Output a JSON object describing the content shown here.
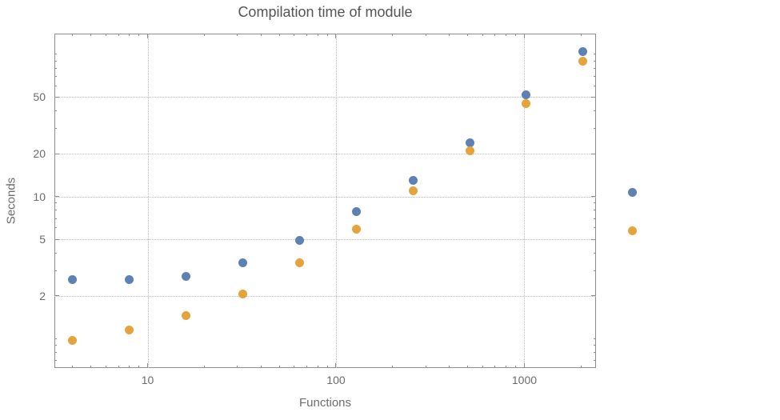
{
  "chart_data": {
    "type": "scatter",
    "title": "Compilation time of module",
    "xlabel": "Functions",
    "ylabel": "Seconds",
    "xscale": "log",
    "yscale": "log",
    "xlim": [
      3.2,
      2400
    ],
    "ylim": [
      0.62,
      140
    ],
    "xticks": [
      10,
      100,
      1000
    ],
    "yticks": [
      2,
      5,
      10,
      20,
      50
    ],
    "grid": true,
    "grid_style": "dotted",
    "grid_color": "#bbbbbb",
    "frame_color": "#8c8c8c",
    "tick_label_color": "#6b6b6b",
    "title_color": "#545454",
    "series": [
      {
        "name": "series-1",
        "color": "#5e81b5",
        "x": [
          4,
          8,
          16,
          32,
          64,
          128,
          256,
          512,
          1024,
          2048
        ],
        "y": [
          2.6,
          2.6,
          2.75,
          3.4,
          4.9,
          7.8,
          13,
          24,
          52,
          105
        ]
      },
      {
        "name": "series-2",
        "color": "#e6a33b",
        "x": [
          4,
          8,
          16,
          32,
          64,
          128,
          256,
          512,
          1024,
          2048
        ],
        "y": [
          0.97,
          1.15,
          1.45,
          2.05,
          3.4,
          5.9,
          11,
          21,
          45,
          90
        ]
      }
    ],
    "legend_markers": [
      {
        "name": "series-1-marker",
        "color": "#5e81b5",
        "label": ""
      },
      {
        "name": "series-2-marker",
        "color": "#e6a33b",
        "label": ""
      }
    ],
    "legend_position": "right"
  }
}
